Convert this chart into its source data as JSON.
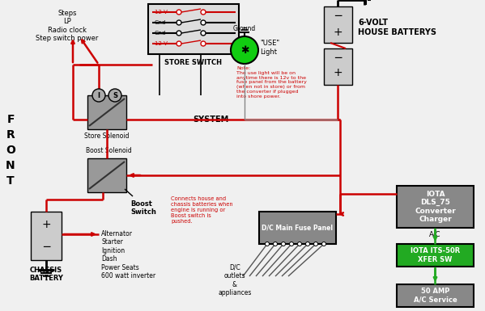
{
  "bg_color": "#f0f0f0",
  "wire_color_red": "#cc0000",
  "wire_color_black": "#000000",
  "box_color_gray": "#999999",
  "box_color_green": "#22aa22",
  "box_color_dark": "#555555",
  "store_switch_label": "STORE SWITCH",
  "store_switch_lines": [
    "12 V",
    "Gnd",
    "Gnd",
    "12 V"
  ],
  "store_switch_colors": [
    true,
    false,
    false,
    true
  ],
  "store_solenoid_label": "Store Solenoid",
  "boost_solenoid_label": "Boost Solenoid",
  "boost_switch_label": "Boost\nSwitch",
  "boost_note": "Connects house and\nchassis batteries when\nengine is running or\nBoost switch is\npushed.",
  "house_battery_label": "6-VOLT\nHOUSE BATTERYS",
  "chassis_battery_label": "CHASSIS\nBATTERY",
  "chassis_loads": "Alternator\nStarter\nIgnition\nDash\nPower Seats\n600 watt inverter",
  "fuse_panel_label": "D/C Main Fuse Panel",
  "dc_label": "D/C\noutlets\n&\nappliances",
  "iota1_label": "IOTA\nDLS_75\nConverter\nCharger",
  "iota2_label": "IOTA ITS-50R\nXFER SW",
  "ac_service_label": "50 AMP\nA/C Service",
  "system_label": "SYSTEM",
  "ground_label": "Ground",
  "use_light_label": "\"USE\"\nLight",
  "ac_label": "A/C",
  "steps_label": "Steps\nLP\nRadio clock\nStep switch power",
  "note_text": "Note:\nThe use light will be on\nanytime there is 12v to the\nfuse panel from the battery\n(when not in store) or from\nthe converter if plugged\ninto shore power.",
  "front_chars": [
    "F",
    "R",
    "O",
    "N",
    "T"
  ]
}
